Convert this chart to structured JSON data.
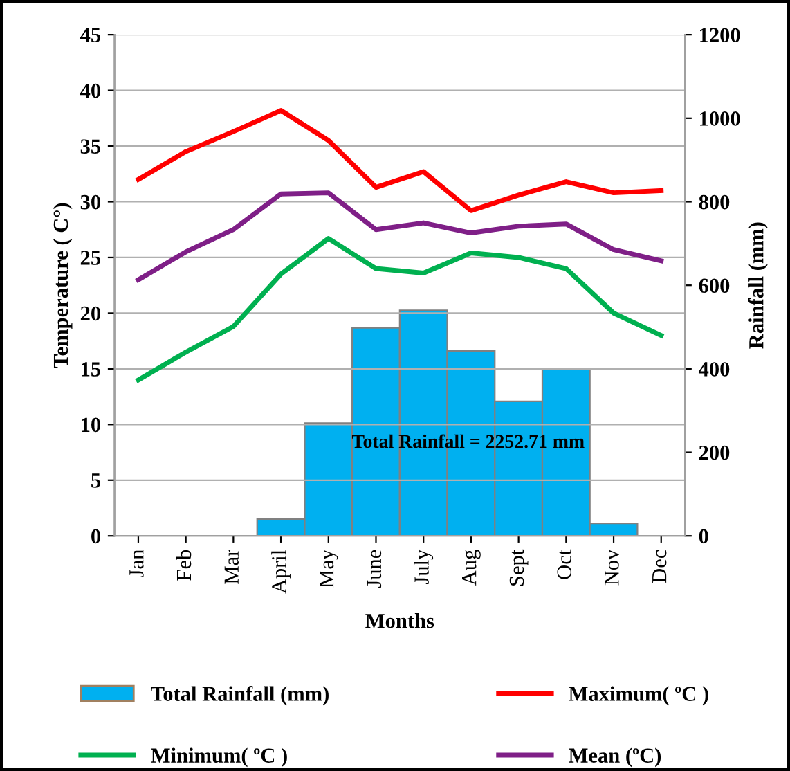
{
  "chart_data": {
    "type": "line",
    "xlabel": "Months",
    "ylabel": "Temperature ( C°)",
    "y2label": "Rainfall (mm)",
    "categories": [
      "Jan",
      "Feb",
      "Mar",
      "April",
      "May",
      "June",
      "July",
      "Aug",
      "Sept",
      "Oct",
      "Nov",
      "Dec"
    ],
    "series": [
      {
        "name": "Total Rainfall (mm)",
        "type": "bar",
        "axis": "y2",
        "color": "#00b0f0",
        "values": [
          0,
          0,
          0,
          40,
          270,
          498,
          540,
          443,
          322,
          400,
          30,
          0
        ]
      },
      {
        "name": "Maximum( ºC )",
        "color": "#ff0000",
        "values": [
          32,
          34.5,
          36.3,
          38.2,
          35.5,
          31.3,
          32.7,
          29.2,
          30.6,
          31.8,
          30.8,
          31.0
        ]
      },
      {
        "name": "Minimum( ºC )",
        "color": "#00b050",
        "values": [
          14,
          16.5,
          18.8,
          23.5,
          26.7,
          24,
          23.6,
          25.4,
          25,
          24,
          20,
          18
        ]
      },
      {
        "name": "Mean (ºC)",
        "color": "#7f1f87",
        "values": [
          23,
          25.5,
          27.5,
          30.7,
          30.8,
          27.5,
          28.1,
          27.2,
          27.8,
          28,
          25.7,
          24.7
        ]
      }
    ],
    "ylim": [
      0,
      45
    ],
    "yticks": [
      0,
      5,
      10,
      15,
      20,
      25,
      30,
      35,
      40,
      45
    ],
    "y2lim": [
      0,
      1200
    ],
    "y2ticks": [
      0,
      200,
      400,
      600,
      800,
      1000,
      1200
    ],
    "grid": "y",
    "legend": "bottom",
    "marker": "none",
    "line_style": "solid",
    "annotations": [
      "Total Rainfall = 2252.71 mm"
    ]
  }
}
